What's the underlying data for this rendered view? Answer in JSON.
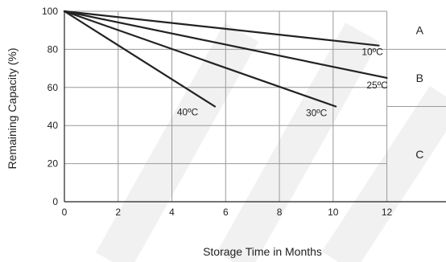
{
  "chart_data": {
    "type": "line",
    "xlabel": "Storage Time in Months",
    "ylabel": "Remaining Capacity (%)",
    "xlim": [
      0,
      14.2
    ],
    "ylim": [
      0,
      100
    ],
    "x_ticks": [
      0,
      2,
      4,
      6,
      8,
      10,
      12
    ],
    "x_tick_labels": [
      "0",
      "2",
      "4",
      "6",
      "8",
      "10",
      "12"
    ],
    "y_ticks": [
      0,
      20,
      40,
      60,
      80,
      100
    ],
    "y_tick_labels": [
      "0",
      "20",
      "40",
      "60",
      "80",
      "100"
    ],
    "grid": true,
    "series": [
      {
        "name": "10ºC",
        "x": [
          0,
          11.7
        ],
        "y": [
          100,
          82
        ]
      },
      {
        "name": "25ºC",
        "x": [
          0,
          12
        ],
        "y": [
          100,
          65
        ]
      },
      {
        "name": "30ºC",
        "x": [
          0,
          10.1
        ],
        "y": [
          100,
          50
        ]
      },
      {
        "name": "40ºC",
        "x": [
          0,
          5.6
        ],
        "y": [
          100,
          50
        ]
      }
    ],
    "regions": [
      {
        "label": "A",
        "y_range": [
          80,
          100
        ]
      },
      {
        "label": "B",
        "y_range": [
          50,
          80
        ]
      },
      {
        "label": "C",
        "y_range": [
          0,
          50
        ]
      }
    ],
    "line_color": "#222222",
    "grid_color": "#9a9a9a"
  }
}
